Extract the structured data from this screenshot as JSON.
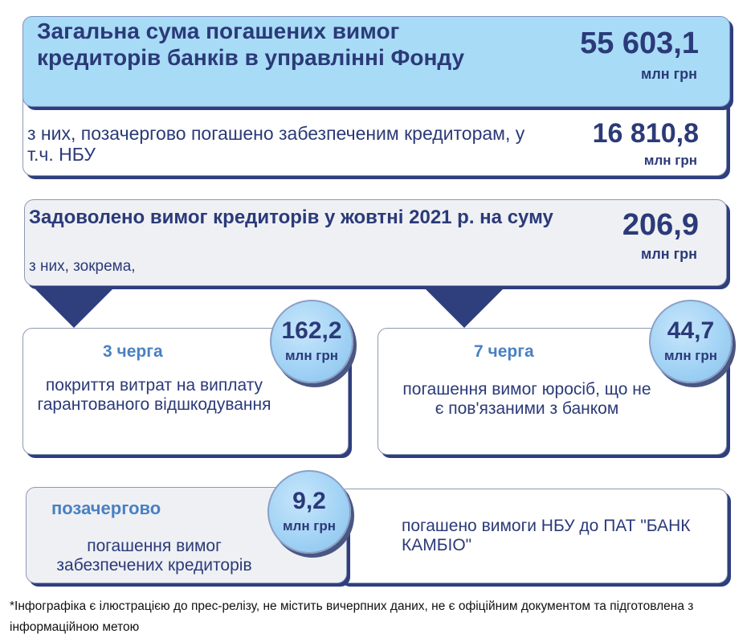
{
  "total": {
    "title": "Загальна сума погашених вимог кредиторів банків в управлінні Фонду",
    "value": "55 603,1",
    "unit": "млн грн"
  },
  "priority_total": {
    "text": "з них, позачергово погашено забезпеченим кредиторам, у т.ч. НБУ",
    "value": "16 810,8",
    "unit": "млн грн"
  },
  "october": {
    "title": "Задоволено вимог кредиторів у жовтні 2021 р. на суму",
    "subtitle": "з них, зокрема,",
    "value": "206,9",
    "unit": "млн грн"
  },
  "queue3": {
    "heading": "3 черга",
    "text": "покриття витрат на виплату гарантованого відшкодування",
    "value": "162,2",
    "unit": "млн грн"
  },
  "queue7": {
    "heading": "7 черга",
    "text": "погашення вимог юросіб, що не є пов'язаними з банком",
    "value": "44,7",
    "unit": "млн грн"
  },
  "extraordinary": {
    "heading": "позачергово",
    "text": "погашення вимог забезпечених кредиторів",
    "value": "9,2",
    "unit": "млн грн",
    "detail": "погашено вимоги НБУ до ПАТ \"БАНК КАМБІО\""
  },
  "footnote": "*Інфографіка є ілюстрацією до прес-релізу, не містить вичерпних даних, не є офіційним документом та підготовлена з інформаційною метою",
  "colors": {
    "navy": "#2b3a78",
    "shadow": "#2f3e7d",
    "light_blue": "#a8dbf6",
    "light_gray": "#eef0f4"
  }
}
